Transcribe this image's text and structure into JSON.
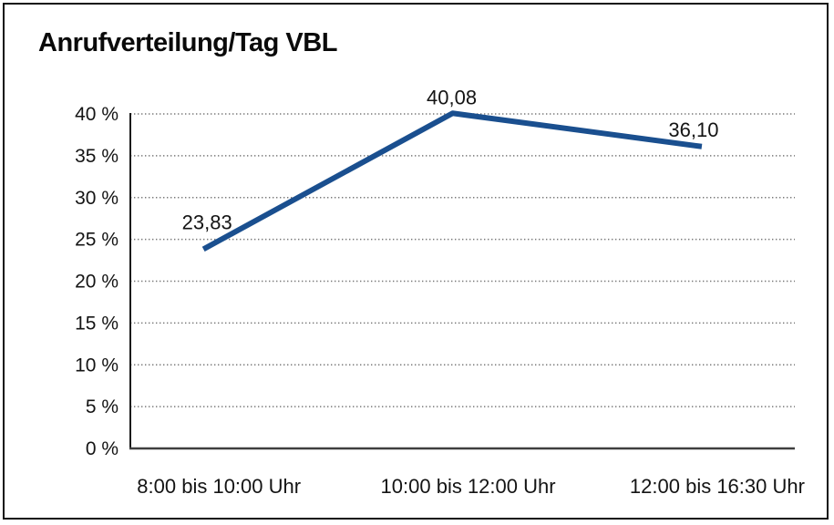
{
  "window": {
    "background_color": "#ffffff",
    "border_color": "#111111"
  },
  "chart_data": {
    "type": "line",
    "title": "Anrufverteilung/Tag VBL",
    "categories": [
      "8:00 bis 10:00 Uhr",
      "10:00 bis 12:00 Uhr",
      "12:00 bis 16:30 Uhr"
    ],
    "series": [
      {
        "values": [
          23.83,
          40.08,
          36.1
        ],
        "point_labels": [
          "23,83",
          "40,08",
          "36,10"
        ],
        "color": "#1A4F8F"
      }
    ],
    "xlabel": "",
    "ylabel": "",
    "ylim": [
      0,
      40
    ],
    "ytick_step": 5,
    "ytick_labels": [
      "0 %",
      "5 %",
      "10 %",
      "15 %",
      "20 %",
      "25 %",
      "30 %",
      "35 %",
      "40 %"
    ],
    "grid": "horizontal dotted",
    "legend": "none",
    "grid_color": "#787878",
    "axis_color": "#1a1a1a"
  }
}
